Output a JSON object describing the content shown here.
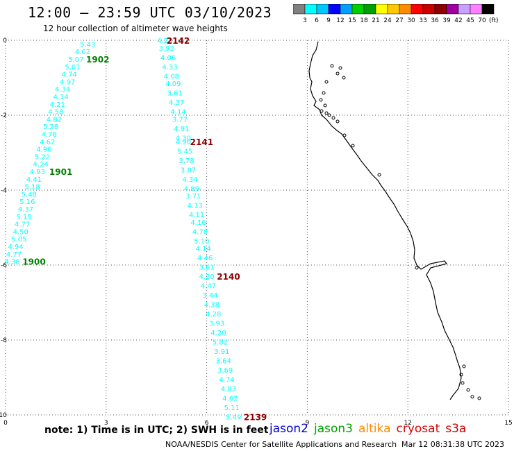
{
  "title": "12:00 — 23:59 UTC 03/10/2023",
  "subtitle": "12 hour collection of altimeter wave heights",
  "colorbar": {
    "unit": "(ft)",
    "colors": [
      "#808080",
      "#00ffff",
      "#00c8ff",
      "#0000ff",
      "#00a0ff",
      "#00d000",
      "#00a000",
      "#ffff00",
      "#ffc800",
      "#ff8c00",
      "#ff0000",
      "#c80000",
      "#8c0000",
      "#a000a0",
      "#c8a0ff",
      "#ff80ff",
      "#000000"
    ],
    "labels": [
      "3",
      "6",
      "9",
      "12",
      "15",
      "18",
      "21",
      "24",
      "27",
      "30",
      "33",
      "36",
      "39",
      "42",
      "45",
      "70"
    ]
  },
  "axes": {
    "x_ticks": [
      "0",
      "3",
      "6",
      "9",
      "12",
      "15"
    ],
    "y_ticks": [
      "0",
      "-2",
      "-4",
      "-6",
      "-8",
      "-10"
    ]
  },
  "tracks": [
    {
      "id": "1902",
      "label_pos": [
        2.75,
        -0.5
      ],
      "color": "#00ffff",
      "label_color": "#008000",
      "points": [
        [
          2.45,
          -0.1,
          "5.43"
        ],
        [
          2.3,
          -0.3,
          "4.62"
        ],
        [
          2.1,
          -0.5,
          "5.07"
        ],
        [
          2.0,
          -0.7,
          "5.01"
        ],
        [
          1.9,
          -0.9,
          "4.74"
        ],
        [
          1.85,
          -1.1,
          "4.97"
        ],
        [
          1.7,
          -1.3,
          "4.34"
        ],
        [
          1.65,
          -1.5,
          "4.14"
        ],
        [
          1.55,
          -1.7,
          "4.21"
        ],
        [
          1.5,
          -1.9,
          "4.58"
        ],
        [
          1.45,
          -2.1,
          "4.82"
        ],
        [
          1.35,
          -2.3,
          "5.28"
        ],
        [
          1.3,
          -2.5,
          "4.78"
        ],
        [
          1.25,
          -2.7,
          "4.62"
        ],
        [
          1.15,
          -2.9,
          "4.96"
        ],
        [
          1.1,
          -3.1,
          "5.22"
        ],
        [
          1.05,
          -3.3,
          "4.24"
        ]
      ]
    },
    {
      "id": "1901",
      "label_pos": [
        1.65,
        -3.5
      ],
      "color": "#00ffff",
      "label_color": "#008000",
      "points": [
        [
          0.95,
          -3.5,
          "4.93"
        ],
        [
          0.85,
          -3.7,
          "4.41"
        ],
        [
          0.8,
          -3.9,
          "5.18"
        ],
        [
          0.7,
          -4.1,
          "5.48"
        ],
        [
          0.65,
          -4.3,
          "5.16"
        ],
        [
          0.6,
          -4.5,
          "4.37"
        ],
        [
          0.55,
          -4.7,
          "5.15"
        ],
        [
          0.5,
          -4.9,
          "4.77"
        ],
        [
          0.45,
          -5.1,
          "4.50"
        ],
        [
          0.4,
          -5.3,
          "5.05"
        ],
        [
          0.3,
          -5.5,
          "4.94"
        ],
        [
          0.25,
          -5.7,
          "4.77"
        ],
        [
          0.2,
          -5.9,
          "4.38"
        ]
      ]
    },
    {
      "id": "1900",
      "label_pos": [
        0.85,
        -5.9
      ],
      "color": "#00ffff",
      "label_color": "#008000",
      "points": []
    },
    {
      "id": "2142",
      "label_pos": [
        5.15,
        0.0
      ],
      "color": "#00ffff",
      "label_color": "#8c0000",
      "points": [
        [
          4.75,
          0.0,
          "4.28"
        ],
        [
          4.8,
          -0.2,
          "3.92"
        ],
        [
          4.85,
          -0.45,
          "4.06"
        ],
        [
          4.9,
          -0.7,
          "4.33"
        ],
        [
          4.95,
          -0.95,
          "4.08"
        ],
        [
          5.0,
          -1.15,
          "4.09"
        ],
        [
          5.05,
          -1.4,
          "3.61"
        ],
        [
          5.1,
          -1.65,
          "4.37"
        ],
        [
          5.15,
          -1.9,
          "4.14"
        ],
        [
          5.2,
          -2.1,
          "3.77"
        ],
        [
          5.25,
          -2.35,
          "4.91"
        ],
        [
          5.3,
          -2.6,
          "4.30"
        ]
      ]
    },
    {
      "id": "2141",
      "label_pos": [
        5.85,
        -2.7
      ],
      "color": "#00ffff",
      "label_color": "#8c0000",
      "points": [
        [
          5.3,
          -2.7,
          "4.90"
        ],
        [
          5.35,
          -2.95,
          "5.45"
        ],
        [
          5.4,
          -3.2,
          "3.78"
        ],
        [
          5.45,
          -3.45,
          "3.87"
        ],
        [
          5.5,
          -3.7,
          "4.34"
        ],
        [
          5.55,
          -3.95,
          "4.89"
        ],
        [
          5.6,
          -4.15,
          "3.71"
        ],
        [
          5.65,
          -4.4,
          "4.13"
        ],
        [
          5.7,
          -4.65,
          "4.11"
        ],
        [
          5.75,
          -4.85,
          "4.16"
        ],
        [
          5.8,
          -5.1,
          "4.78"
        ],
        [
          5.85,
          -5.35,
          "5.10"
        ],
        [
          5.9,
          -5.55,
          "4.14"
        ],
        [
          5.95,
          -5.8,
          "4.46"
        ],
        [
          6.0,
          -6.05,
          "3.61"
        ]
      ]
    },
    {
      "id": "2140",
      "label_pos": [
        6.65,
        -6.3
      ],
      "color": "#00ffff",
      "label_color": "#8c0000",
      "points": [
        [
          6.0,
          -6.3,
          "4.20"
        ],
        [
          6.05,
          -6.55,
          "4.47"
        ],
        [
          6.1,
          -6.8,
          "3.44"
        ],
        [
          6.15,
          -7.05,
          "4.38"
        ],
        [
          6.2,
          -7.3,
          "4.28"
        ],
        [
          6.3,
          -7.55,
          "3.93"
        ],
        [
          6.35,
          -7.8,
          "4.20"
        ],
        [
          6.4,
          -8.05,
          "5.82"
        ],
        [
          6.45,
          -8.3,
          "3.91"
        ],
        [
          6.5,
          -8.55,
          "3.64"
        ],
        [
          6.55,
          -8.8,
          "3.69"
        ],
        [
          6.6,
          -9.05,
          "4.74"
        ],
        [
          6.65,
          -9.3,
          "4.83"
        ],
        [
          6.7,
          -9.55,
          "4.62"
        ],
        [
          6.75,
          -9.8,
          "5.11"
        ],
        [
          6.8,
          -10.05,
          "5.49"
        ]
      ]
    },
    {
      "id": "2139",
      "label_pos": [
        7.45,
        -10.05
      ],
      "color": "#00ffff",
      "label_color": "#8c0000",
      "points": []
    }
  ],
  "note": "note: 1) Time is in UTC; 2) SWH is in feet",
  "legend": [
    {
      "name": "jason2",
      "color": "#0000dc"
    },
    {
      "name": "jason3",
      "color": "#00a000"
    },
    {
      "name": "altika",
      "color": "#ff8c00"
    },
    {
      "name": "cryosat",
      "color": "#e00000"
    },
    {
      "name": "s3a",
      "color": "#c80000"
    }
  ],
  "credit": "NOAA/NESDIS Center for Satellite Applications and Research",
  "stamp": "Mar 12 08:31:38 UTC 2023"
}
